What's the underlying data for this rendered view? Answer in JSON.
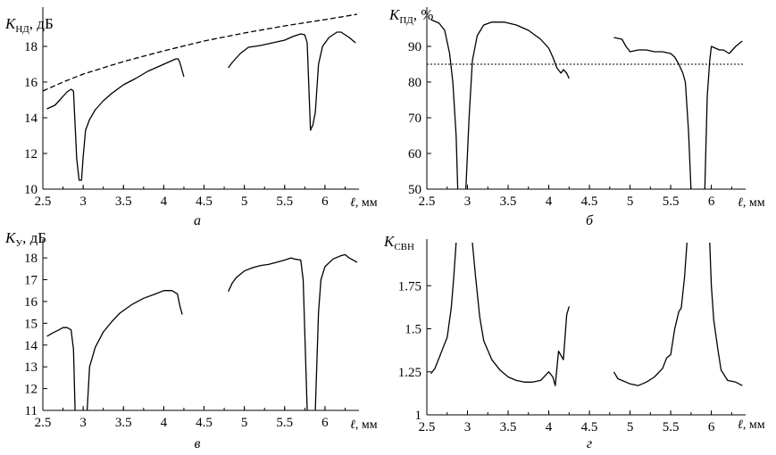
{
  "chart_data": [
    {
      "type": "line",
      "panel_label": "а",
      "ylabel_main": "K",
      "ylabel_sub": "НД",
      "ylabel_unit": ", дБ",
      "xlabel_var": "ℓ",
      "xlabel_unit": ", мм",
      "xlim": [
        2.5,
        6.4
      ],
      "ylim": [
        10,
        20
      ],
      "xticks": [
        "2.5",
        "3",
        "3.5",
        "4",
        "4.5",
        "5",
        "5.5",
        "6"
      ],
      "yticks": [
        "10",
        "12",
        "14",
        "16",
        "18"
      ],
      "series": [
        {
          "style": "solid",
          "points": [
            [
              2.55,
              14.5
            ],
            [
              2.6,
              14.6
            ],
            [
              2.65,
              14.7
            ],
            [
              2.7,
              14.95
            ],
            [
              2.75,
              15.2
            ],
            [
              2.8,
              15.45
            ],
            [
              2.85,
              15.6
            ],
            [
              2.88,
              15.5
            ],
            [
              2.92,
              11.7
            ],
            [
              2.95,
              10.5
            ],
            [
              2.98,
              10.5
            ],
            [
              3.0,
              11.8
            ],
            [
              3.03,
              13.3
            ],
            [
              3.08,
              13.9
            ],
            [
              3.15,
              14.45
            ],
            [
              3.25,
              14.95
            ],
            [
              3.35,
              15.35
            ],
            [
              3.5,
              15.85
            ],
            [
              3.65,
              16.2
            ],
            [
              3.8,
              16.6
            ],
            [
              3.95,
              16.9
            ],
            [
              4.05,
              17.1
            ],
            [
              4.15,
              17.3
            ],
            [
              4.18,
              17.3
            ],
            [
              4.2,
              17.1
            ],
            [
              4.25,
              16.3
            ]
          ]
        },
        {
          "style": "solid",
          "points": [
            [
              4.8,
              16.8
            ],
            [
              4.85,
              17.1
            ],
            [
              4.95,
              17.6
            ],
            [
              5.05,
              17.95
            ],
            [
              5.2,
              18.05
            ],
            [
              5.35,
              18.2
            ],
            [
              5.5,
              18.35
            ],
            [
              5.6,
              18.55
            ],
            [
              5.7,
              18.7
            ],
            [
              5.75,
              18.65
            ],
            [
              5.78,
              18.2
            ],
            [
              5.82,
              13.3
            ],
            [
              5.85,
              13.6
            ],
            [
              5.88,
              14.3
            ],
            [
              5.92,
              17.0
            ],
            [
              5.97,
              18.0
            ],
            [
              6.05,
              18.5
            ],
            [
              6.15,
              18.8
            ],
            [
              6.2,
              18.8
            ],
            [
              6.3,
              18.5
            ],
            [
              6.38,
              18.2
            ]
          ]
        },
        {
          "style": "dashed",
          "points": [
            [
              2.5,
              15.5
            ],
            [
              2.75,
              16.0
            ],
            [
              3.0,
              16.45
            ],
            [
              3.5,
              17.15
            ],
            [
              4.0,
              17.75
            ],
            [
              4.5,
              18.3
            ],
            [
              5.0,
              18.75
            ],
            [
              5.5,
              19.15
            ],
            [
              6.0,
              19.5
            ],
            [
              6.4,
              19.8
            ]
          ]
        }
      ]
    },
    {
      "type": "line",
      "panel_label": "б",
      "ylabel_main": "K",
      "ylabel_sub": "ПД",
      "ylabel_unit": ", %",
      "xlabel_var": "ℓ",
      "xlabel_unit": ", мм",
      "xlim": [
        2.5,
        6.4
      ],
      "ylim": [
        50,
        100
      ],
      "xticks": [
        "2.5",
        "3",
        "3.5",
        "4",
        "4.5",
        "5",
        "5.5",
        "6"
      ],
      "yticks": [
        "50",
        "60",
        "70",
        "80",
        "90"
      ],
      "series": [
        {
          "style": "solid",
          "points": [
            [
              2.55,
              97.5
            ],
            [
              2.65,
              96.5
            ],
            [
              2.72,
              94.5
            ],
            [
              2.78,
              88
            ],
            [
              2.82,
              80
            ],
            [
              2.86,
              65
            ],
            [
              2.88,
              50
            ]
          ]
        },
        {
          "style": "solid",
          "points": [
            [
              2.98,
              50
            ],
            [
              3.02,
              70
            ],
            [
              3.06,
              86
            ],
            [
              3.12,
              93
            ],
            [
              3.2,
              96
            ],
            [
              3.3,
              96.8
            ],
            [
              3.45,
              96.8
            ],
            [
              3.6,
              96
            ],
            [
              3.75,
              94.5
            ],
            [
              3.9,
              92
            ],
            [
              4.0,
              89.5
            ],
            [
              4.05,
              87
            ],
            [
              4.1,
              84
            ],
            [
              4.15,
              82.5
            ],
            [
              4.18,
              83.5
            ],
            [
              4.22,
              82.5
            ],
            [
              4.25,
              81
            ]
          ]
        },
        {
          "style": "solid",
          "points": [
            [
              4.8,
              92.5
            ],
            [
              4.9,
              92
            ],
            [
              4.95,
              90
            ],
            [
              5.0,
              88.5
            ],
            [
              5.1,
              89
            ],
            [
              5.2,
              89
            ],
            [
              5.3,
              88.5
            ],
            [
              5.4,
              88.5
            ],
            [
              5.5,
              88
            ],
            [
              5.55,
              87
            ],
            [
              5.6,
              85
            ],
            [
              5.65,
              82.5
            ],
            [
              5.68,
              80
            ],
            [
              5.72,
              66
            ],
            [
              5.75,
              50
            ]
          ]
        },
        {
          "style": "solid",
          "points": [
            [
              5.92,
              50
            ],
            [
              5.95,
              76
            ],
            [
              5.98,
              86
            ],
            [
              6.0,
              90
            ],
            [
              6.05,
              89.5
            ],
            [
              6.1,
              89
            ],
            [
              6.15,
              89
            ],
            [
              6.22,
              88
            ],
            [
              6.3,
              90
            ],
            [
              6.38,
              91.5
            ]
          ]
        },
        {
          "style": "dotted",
          "points": [
            [
              2.5,
              85
            ],
            [
              6.4,
              85
            ]
          ]
        }
      ]
    },
    {
      "type": "line",
      "panel_label": "в",
      "ylabel_main": "K",
      "ylabel_sub": "У",
      "ylabel_unit": ", дБ",
      "xlabel_var": "ℓ",
      "xlabel_unit": ", мм",
      "xlim": [
        2.5,
        6.4
      ],
      "ylim": [
        11,
        18.7
      ],
      "xticks": [
        "2.5",
        "3",
        "3.5",
        "4",
        "4.5",
        "5",
        "5.5",
        "6"
      ],
      "yticks": [
        "11",
        "12",
        "13",
        "14",
        "15",
        "16",
        "17",
        "18"
      ],
      "series": [
        {
          "style": "solid",
          "points": [
            [
              2.55,
              14.4
            ],
            [
              2.62,
              14.55
            ],
            [
              2.7,
              14.7
            ],
            [
              2.75,
              14.8
            ],
            [
              2.8,
              14.8
            ],
            [
              2.85,
              14.7
            ],
            [
              2.88,
              13.8
            ],
            [
              2.9,
              11.0
            ]
          ]
        },
        {
          "style": "solid",
          "points": [
            [
              3.05,
              11.0
            ],
            [
              3.08,
              13.0
            ],
            [
              3.15,
              13.9
            ],
            [
              3.25,
              14.6
            ],
            [
              3.35,
              15.05
            ],
            [
              3.45,
              15.45
            ],
            [
              3.6,
              15.85
            ],
            [
              3.75,
              16.15
            ],
            [
              3.9,
              16.35
            ],
            [
              4.0,
              16.5
            ],
            [
              4.1,
              16.5
            ],
            [
              4.17,
              16.35
            ],
            [
              4.2,
              15.8
            ],
            [
              4.23,
              15.4
            ]
          ]
        },
        {
          "style": "solid",
          "points": [
            [
              4.8,
              16.45
            ],
            [
              4.85,
              16.85
            ],
            [
              4.9,
              17.1
            ],
            [
              5.0,
              17.4
            ],
            [
              5.1,
              17.55
            ],
            [
              5.2,
              17.65
            ],
            [
              5.3,
              17.7
            ],
            [
              5.4,
              17.8
            ],
            [
              5.5,
              17.9
            ],
            [
              5.58,
              18.0
            ],
            [
              5.62,
              17.95
            ],
            [
              5.7,
              17.9
            ],
            [
              5.73,
              17.0
            ],
            [
              5.78,
              11.0
            ]
          ]
        },
        {
          "style": "solid",
          "points": [
            [
              5.88,
              11.0
            ],
            [
              5.92,
              15.5
            ],
            [
              5.95,
              17.0
            ],
            [
              6.0,
              17.6
            ],
            [
              6.1,
              17.95
            ],
            [
              6.2,
              18.1
            ],
            [
              6.25,
              18.15
            ],
            [
              6.3,
              18.0
            ],
            [
              6.4,
              17.8
            ]
          ]
        }
      ]
    },
    {
      "type": "line",
      "panel_label": "г",
      "ylabel_main": "K",
      "ylabel_sub": "СВН",
      "ylabel_unit": "",
      "xlabel_var": "ℓ",
      "xlabel_unit": ", мм",
      "xlim": [
        2.5,
        6.4
      ],
      "ylim": [
        1.0,
        2.0
      ],
      "xticks": [
        "2.5",
        "3",
        "3.5",
        "4",
        "4.5",
        "5",
        "5.5",
        "6"
      ],
      "yticks": [
        "1",
        "1.25",
        "1.5",
        "1.75"
      ],
      "series": [
        {
          "style": "solid",
          "points": [
            [
              2.55,
              1.24
            ],
            [
              2.6,
              1.27
            ],
            [
              2.65,
              1.33
            ],
            [
              2.7,
              1.39
            ],
            [
              2.75,
              1.45
            ],
            [
              2.8,
              1.62
            ],
            [
              2.83,
              1.79
            ],
            [
              2.86,
              2.0
            ]
          ]
        },
        {
          "style": "solid",
          "points": [
            [
              3.06,
              2.0
            ],
            [
              3.1,
              1.8
            ],
            [
              3.15,
              1.57
            ],
            [
              3.2,
              1.43
            ],
            [
              3.3,
              1.32
            ],
            [
              3.4,
              1.26
            ],
            [
              3.5,
              1.22
            ],
            [
              3.6,
              1.2
            ],
            [
              3.7,
              1.19
            ],
            [
              3.8,
              1.19
            ],
            [
              3.9,
              1.2
            ],
            [
              4.0,
              1.25
            ],
            [
              4.05,
              1.22
            ],
            [
              4.08,
              1.17
            ],
            [
              4.12,
              1.37
            ],
            [
              4.18,
              1.32
            ],
            [
              4.22,
              1.58
            ],
            [
              4.25,
              1.63
            ]
          ]
        },
        {
          "style": "solid",
          "points": [
            [
              4.8,
              1.25
            ],
            [
              4.85,
              1.21
            ],
            [
              4.9,
              1.2
            ],
            [
              5.0,
              1.18
            ],
            [
              5.1,
              1.17
            ],
            [
              5.2,
              1.19
            ],
            [
              5.3,
              1.22
            ],
            [
              5.4,
              1.27
            ],
            [
              5.45,
              1.33
            ],
            [
              5.5,
              1.35
            ],
            [
              5.55,
              1.5
            ],
            [
              5.6,
              1.6
            ],
            [
              5.63,
              1.62
            ],
            [
              5.67,
              1.8
            ],
            [
              5.7,
              2.0
            ]
          ]
        },
        {
          "style": "solid",
          "points": [
            [
              5.98,
              2.0
            ],
            [
              6.0,
              1.75
            ],
            [
              6.03,
              1.55
            ],
            [
              6.08,
              1.38
            ],
            [
              6.12,
              1.26
            ],
            [
              6.2,
              1.2
            ],
            [
              6.3,
              1.19
            ],
            [
              6.38,
              1.17
            ]
          ]
        }
      ]
    }
  ]
}
